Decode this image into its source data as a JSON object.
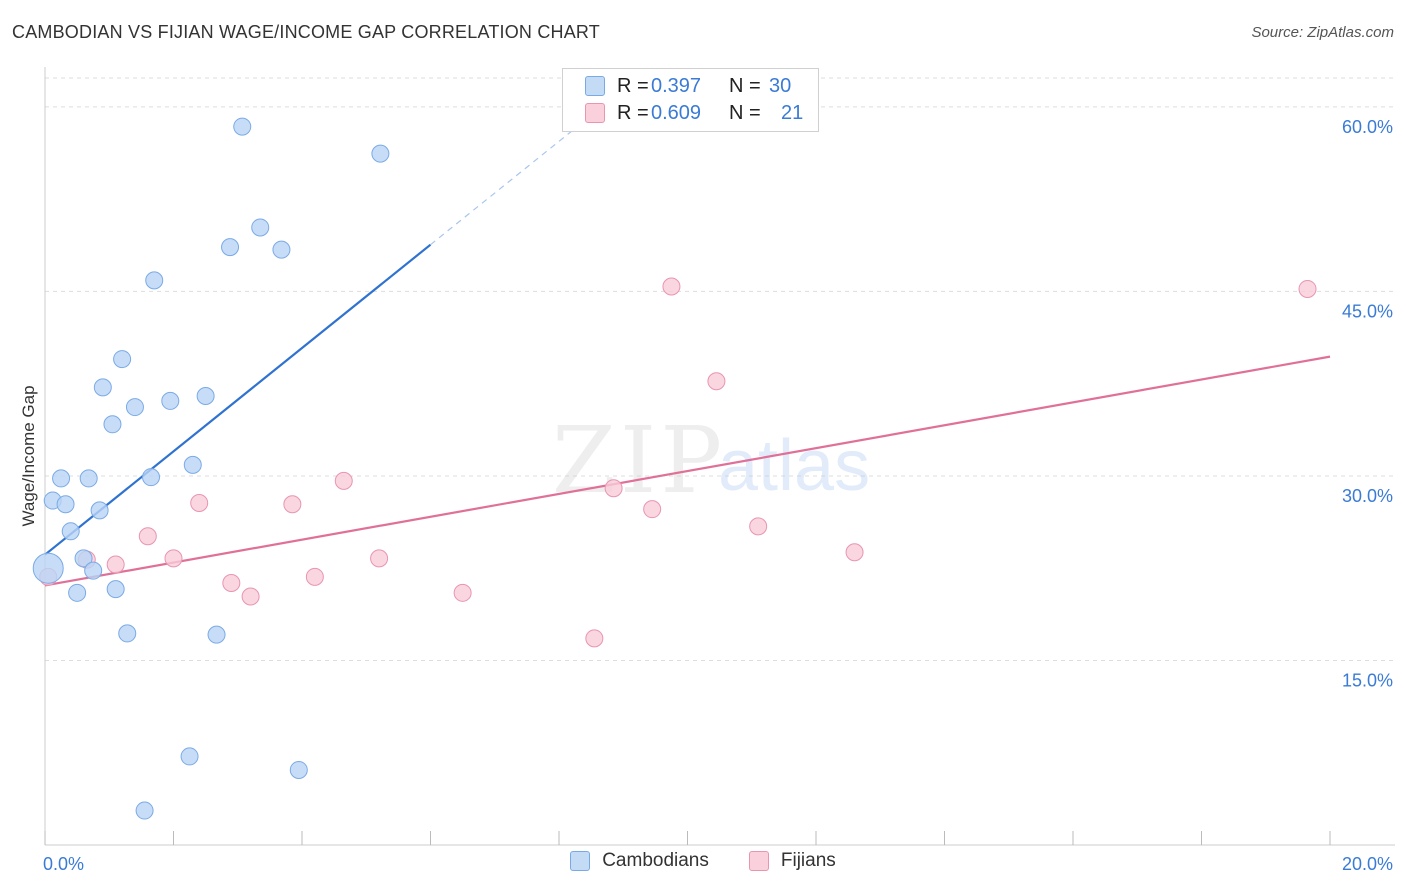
{
  "header": {
    "title": "CAMBODIAN VS FIJIAN WAGE/INCOME GAP CORRELATION CHART",
    "source": "Source: ZipAtlas.com"
  },
  "watermark": {
    "zip": "ZIP",
    "atlas": "atlas"
  },
  "legend": {
    "rows": [
      {
        "r_label": "R =",
        "r_value": "0.397",
        "n_label": "N =",
        "n_value": "30",
        "color": "#9ec3ee"
      },
      {
        "r_label": "R =",
        "r_value": "0.609",
        "n_label": "N =",
        "n_value": "21",
        "color": "#f4b6c8"
      }
    ]
  },
  "bottom_legend": {
    "cambodians": "Cambodians",
    "fijians": "Fijians"
  },
  "colors": {
    "blue_fill": "#b9d4f5",
    "blue_stroke": "#7aaae6",
    "blue_line": "#2f72d0",
    "pink_fill": "#f9ccd9",
    "pink_stroke": "#e895b0",
    "pink_line": "#e07098",
    "axis_text": "#3a7bd5",
    "grid": "#dddddd"
  },
  "chart_data": {
    "type": "scatter",
    "title": "CAMBODIAN VS FIJIAN WAGE/INCOME GAP CORRELATION CHART",
    "xlabel": "",
    "ylabel": "Wage/Income Gap",
    "xlim": [
      0,
      20
    ],
    "ylim": [
      0,
      63
    ],
    "x_tick_labels": [
      "0.0%",
      "20.0%"
    ],
    "y_ticks": [
      15,
      30,
      45,
      60
    ],
    "y_tick_labels": [
      "15.0%",
      "30.0%",
      "45.0%",
      "60.0%"
    ],
    "grid": true,
    "series": [
      {
        "name": "Cambodians",
        "r": 0.397,
        "n": 30,
        "points": [
          [
            0.05,
            22.5
          ],
          [
            0.12,
            28.0
          ],
          [
            0.25,
            29.8
          ],
          [
            0.32,
            27.7
          ],
          [
            0.4,
            25.5
          ],
          [
            0.5,
            20.5
          ],
          [
            0.6,
            23.3
          ],
          [
            0.68,
            29.8
          ],
          [
            0.75,
            22.3
          ],
          [
            0.85,
            27.2
          ],
          [
            0.9,
            37.2
          ],
          [
            1.05,
            34.2
          ],
          [
            1.1,
            20.8
          ],
          [
            1.2,
            39.5
          ],
          [
            1.28,
            17.2
          ],
          [
            1.4,
            35.6
          ],
          [
            1.55,
            2.8
          ],
          [
            1.65,
            29.9
          ],
          [
            1.7,
            45.9
          ],
          [
            1.95,
            36.1
          ],
          [
            2.25,
            7.2
          ],
          [
            2.3,
            30.9
          ],
          [
            2.5,
            36.5
          ],
          [
            2.67,
            17.1
          ],
          [
            2.88,
            48.6
          ],
          [
            3.07,
            58.4
          ],
          [
            3.35,
            50.2
          ],
          [
            3.68,
            48.4
          ],
          [
            3.95,
            6.1
          ],
          [
            5.22,
            56.2
          ]
        ],
        "trend": {
          "x0": 0.0,
          "y0": 23.6,
          "x1": 6.0,
          "y1": 48.8,
          "dash_x1": 8.5,
          "dash_y1": 59.3
        }
      },
      {
        "name": "Fijians",
        "r": 0.609,
        "n": 21,
        "points": [
          [
            0.05,
            21.8
          ],
          [
            0.65,
            23.2
          ],
          [
            1.1,
            22.8
          ],
          [
            1.6,
            25.1
          ],
          [
            2.0,
            23.3
          ],
          [
            2.4,
            27.8
          ],
          [
            2.9,
            21.3
          ],
          [
            3.2,
            20.2
          ],
          [
            3.85,
            27.7
          ],
          [
            4.2,
            21.8
          ],
          [
            4.65,
            29.6
          ],
          [
            5.2,
            23.3
          ],
          [
            6.5,
            20.5
          ],
          [
            8.55,
            16.8
          ],
          [
            8.85,
            29.0
          ],
          [
            9.45,
            27.3
          ],
          [
            9.75,
            45.4
          ],
          [
            10.45,
            37.7
          ],
          [
            11.1,
            25.9
          ],
          [
            12.6,
            23.8
          ],
          [
            19.65,
            45.2
          ]
        ],
        "trend": {
          "x0": 0.0,
          "y0": 21.1,
          "x1": 20.0,
          "y1": 39.7
        }
      }
    ]
  }
}
